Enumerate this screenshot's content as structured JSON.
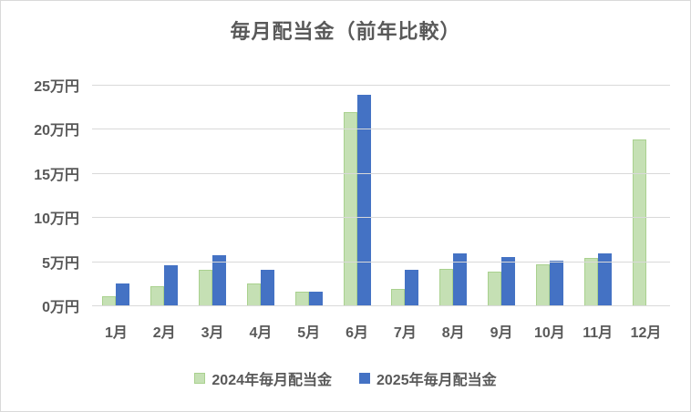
{
  "window": {
    "background": "#ffffff",
    "border_color": "#d9d9d9",
    "text_color": "#595959",
    "grid_color": "#d9d9d9"
  },
  "chart_data": {
    "type": "bar",
    "title": "毎月配当金（前年比較）",
    "categories": [
      "1月",
      "2月",
      "3月",
      "4月",
      "5月",
      "6月",
      "7月",
      "8月",
      "9月",
      "10月",
      "11月",
      "12月"
    ],
    "series": [
      {
        "name": "2024年毎月配当金",
        "color": "#c5e0b4",
        "border_color": "#a9d18e",
        "values": [
          1.0,
          2.2,
          4.0,
          2.5,
          1.5,
          21.9,
          1.9,
          4.1,
          3.8,
          4.7,
          5.4,
          18.8
        ]
      },
      {
        "name": "2025年毎月配当金",
        "color": "#4472c4",
        "border_color": "#4472c4",
        "values": [
          2.5,
          4.5,
          5.7,
          4.0,
          1.6,
          23.9,
          4.0,
          5.9,
          5.5,
          5.1,
          5.9,
          null
        ]
      }
    ],
    "ylabel": "",
    "xlabel": "",
    "ylim": [
      0,
      25
    ],
    "yticks": [
      {
        "value": 25,
        "label": "25万円"
      },
      {
        "value": 20,
        "label": "20万円"
      },
      {
        "value": 15,
        "label": "15万円"
      },
      {
        "value": 10,
        "label": "10万円"
      },
      {
        "value": 5,
        "label": "5万円"
      },
      {
        "value": 0,
        "label": "0万円"
      }
    ],
    "grid": true,
    "legend_position": "bottom"
  }
}
